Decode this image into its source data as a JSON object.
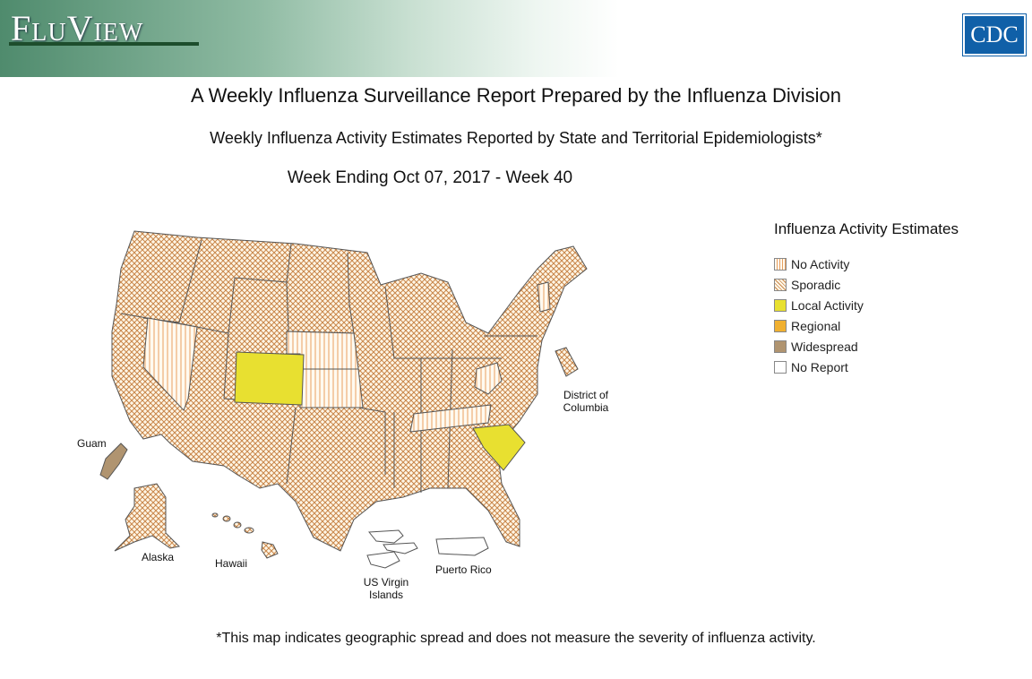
{
  "header": {
    "logo": "FluView",
    "agency": "CDC"
  },
  "titles": [
    "A Weekly Influenza Surveillance Report Prepared by the Influenza Division",
    "Weekly Influenza Activity Estimates Reported by State and Territorial Epidemiologists*",
    "Week Ending Oct 07, 2017 - Week 40"
  ],
  "legend": {
    "title": "Influenza Activity Estimates",
    "items": [
      "No Activity",
      "Sporadic",
      "Local Activity",
      "Regional",
      "Widespread",
      "No Report"
    ]
  },
  "map_labels": {
    "dc": "District of Columbia",
    "guam": "Guam",
    "alaska": "Alaska",
    "hawaii": "Hawaii",
    "virgin_islands": "US Virgin Islands",
    "puerto_rico": "Puerto Rico"
  },
  "footnote": "*This map indicates geographic spread and does not measure the severity of influenza activity."
}
